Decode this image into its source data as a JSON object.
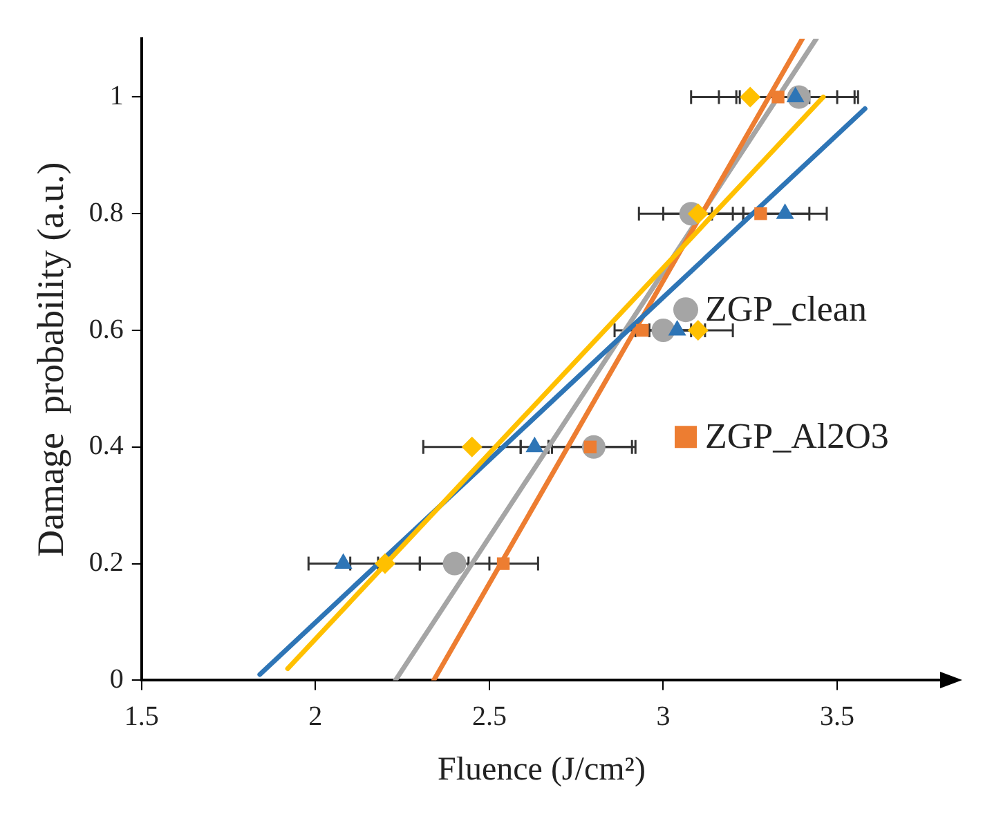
{
  "chart_data": {
    "type": "scatter",
    "xlabel": "Fluence (J/cm²)",
    "ylabel": "Damage  probability (a.u.)",
    "xlim": [
      1.5,
      3.8
    ],
    "ylim": [
      0,
      1.1
    ],
    "xticks": [
      1.5,
      2,
      2.5,
      3,
      3.5
    ],
    "yticks": [
      0,
      0.2,
      0.4,
      0.6,
      0.8,
      1
    ],
    "grid": false,
    "legend": "right",
    "series": [
      {
        "name": "ZGP_clean",
        "type": "scatter",
        "marker": "circle",
        "color": "#a5a5a5",
        "x": [
          2.4,
          2.8,
          3.0,
          3.08,
          3.39
        ],
        "values": [
          0.2,
          0.4,
          0.6,
          0.8,
          1
        ],
        "xerrors": [
          0.1,
          0.12,
          0.08,
          0.15,
          0.17
        ]
      },
      {
        "name": "ZGP_Al2O3",
        "type": "scatter",
        "marker": "square",
        "color": "#ed7d31",
        "x": [
          2.54,
          2.79,
          2.94,
          3.28,
          3.33
        ],
        "values": [
          0.2,
          0.4,
          0.6,
          0.8,
          1
        ],
        "xerrors": [
          0.1,
          0.12,
          0.08,
          0.14,
          0.17
        ]
      },
      {
        "type": "scatter",
        "marker": "triangle",
        "color": "#2e75b6",
        "x": [
          2.08,
          2.63,
          3.04,
          3.35,
          3.38
        ],
        "values": [
          0.2,
          0.4,
          0.6,
          0.8,
          1
        ],
        "xerrors": [
          0.1,
          0.04,
          0.08,
          0.12,
          0.17
        ]
      },
      {
        "type": "scatter",
        "marker": "diamond",
        "color": "#ffc000",
        "x": [
          2.2,
          2.45,
          3.1,
          3.1,
          3.25
        ],
        "values": [
          0.2,
          0.4,
          0.6,
          0.8,
          1
        ],
        "xerrors": [
          0.1,
          0.14,
          0.1,
          0.1,
          0.17
        ]
      },
      {
        "type": "line",
        "color": "#a5a5a5",
        "x": [
          2.23,
          3.44
        ],
        "values": [
          0,
          1.1
        ]
      },
      {
        "type": "line",
        "color": "#ed7d31",
        "x": [
          2.34,
          3.4
        ],
        "values": [
          0,
          1.1
        ]
      },
      {
        "type": "line",
        "color": "#2e75b6",
        "x": [
          1.84,
          3.58
        ],
        "values": [
          0.01,
          0.98
        ]
      },
      {
        "type": "line",
        "color": "#ffc000",
        "x": [
          1.92,
          3.46
        ],
        "values": [
          0.02,
          1.0
        ]
      }
    ]
  }
}
